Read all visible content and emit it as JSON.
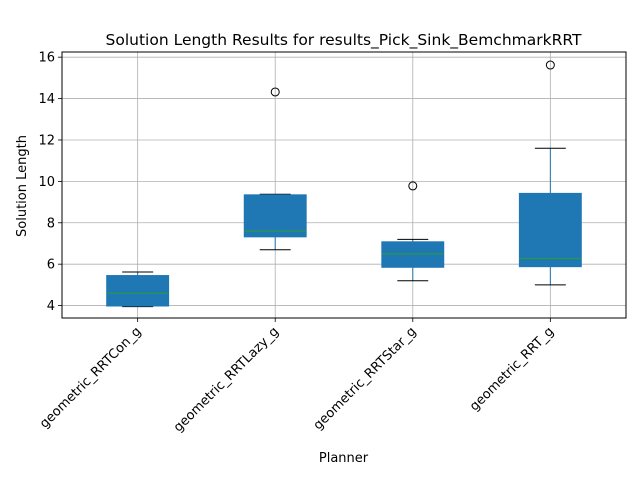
{
  "chart_data": {
    "type": "box",
    "title": "Solution Length Results for results_Pick_Sink_BemchmarkRRT",
    "xlabel": "Planner",
    "ylabel": "Solution Length",
    "ylim": [
      3.4,
      16.25
    ],
    "yticks": [
      4,
      6,
      8,
      10,
      12,
      14,
      16
    ],
    "grid": true,
    "box_color": "#1f77b4",
    "median_color": "#2ca02c",
    "categories": [
      "geometric_RRTCon_g",
      "geometric_RRTLazy_g",
      "geometric_RRTStar_g",
      "geometric_RRT_g"
    ],
    "boxes": [
      {
        "name": "geometric_RRTCon_g",
        "whisker_low": 3.95,
        "q1": 3.98,
        "median": 4.6,
        "q3": 5.45,
        "whisker_high": 5.62,
        "outliers": []
      },
      {
        "name": "geometric_RRTLazy_g",
        "whisker_low": 6.7,
        "q1": 7.32,
        "median": 7.6,
        "q3": 9.35,
        "whisker_high": 9.38,
        "outliers": [
          14.32
        ]
      },
      {
        "name": "geometric_RRTStar_g",
        "whisker_low": 5.2,
        "q1": 5.85,
        "median": 6.5,
        "q3": 7.08,
        "whisker_high": 7.2,
        "outliers": [
          9.78
        ]
      },
      {
        "name": "geometric_RRT_g",
        "whisker_low": 5.0,
        "q1": 5.88,
        "median": 6.28,
        "q3": 9.42,
        "whisker_high": 11.6,
        "outliers": [
          15.62
        ]
      }
    ]
  }
}
